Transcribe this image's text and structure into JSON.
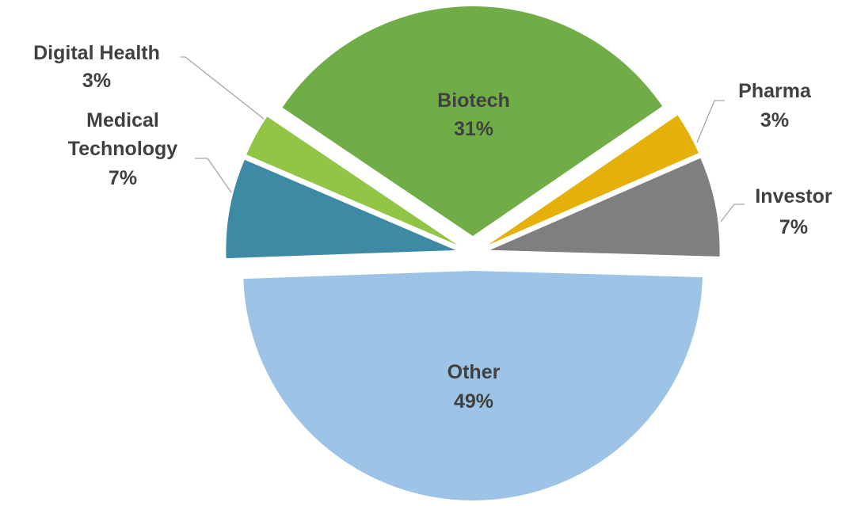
{
  "chart_data": {
    "type": "pie",
    "categories": [
      "Biotech",
      "Pharma",
      "Investor",
      "Other",
      "Medical Technology",
      "Digital Health"
    ],
    "values": [
      31,
      3,
      7,
      49,
      7,
      3
    ],
    "value_labels": [
      "31%",
      "3%",
      "7%",
      "49%",
      "7%",
      "3%"
    ],
    "colors": [
      "#70ad47",
      "#e6b00a",
      "#7f7f7f",
      "#9dc3e6",
      "#3e8aa4",
      "#92c445"
    ]
  }
}
